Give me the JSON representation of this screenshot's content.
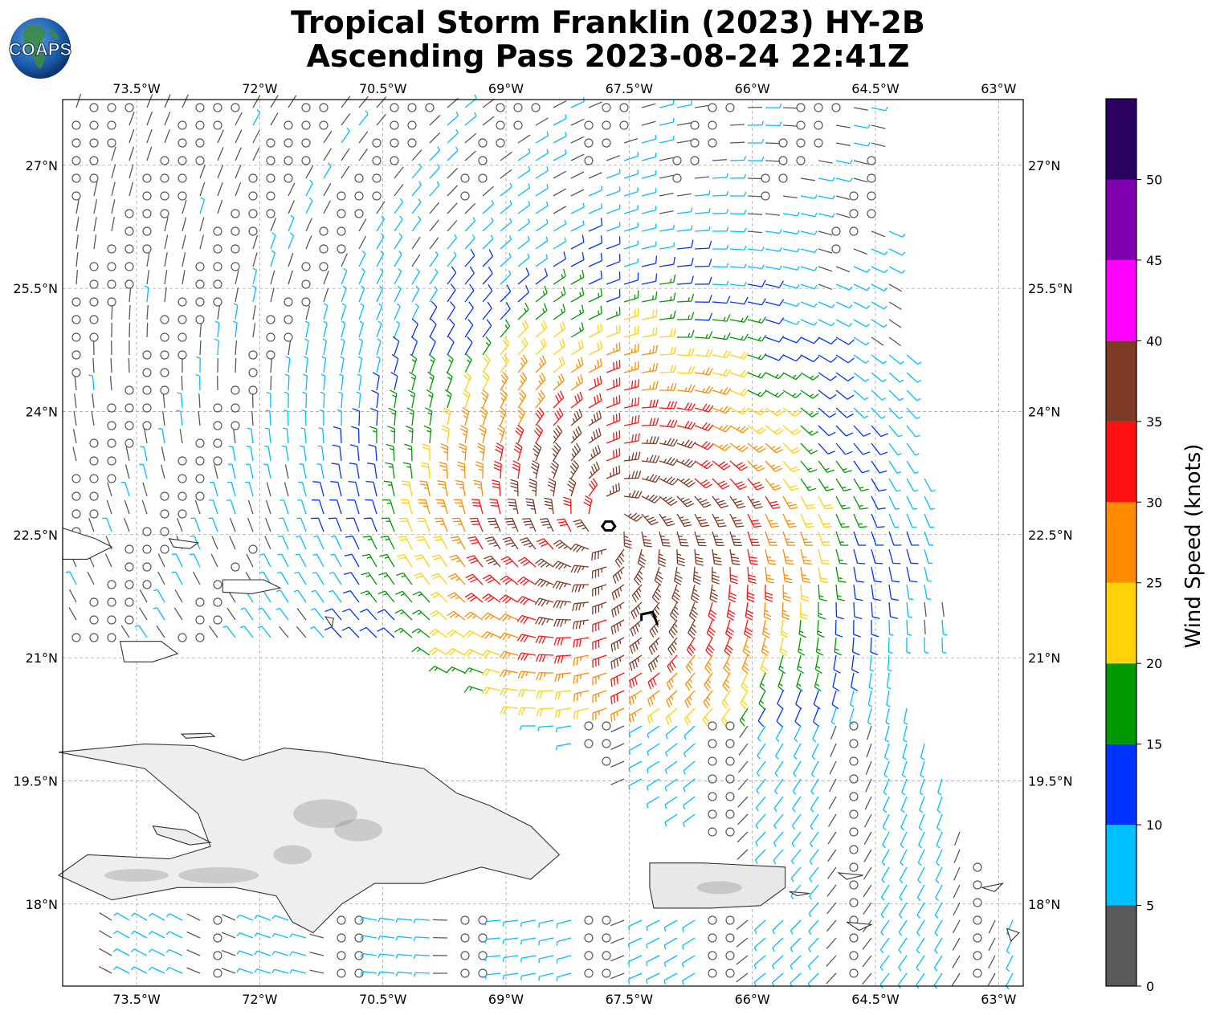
{
  "header": {
    "title_line1": "Tropical Storm Franklin (2023) HY-2B",
    "title_line2": "Ascending Pass 2023-08-24 22:41Z"
  },
  "logo": {
    "text": "COAPS"
  },
  "map": {
    "lon_range": [
      -74.4,
      -62.7
    ],
    "lat_range": [
      17.0,
      27.8
    ],
    "lon_ticks": [
      {
        "value": -73.5,
        "label": "73.5°W"
      },
      {
        "value": -72.0,
        "label": "72°W"
      },
      {
        "value": -70.5,
        "label": "70.5°W"
      },
      {
        "value": -69.0,
        "label": "69°W"
      },
      {
        "value": -67.5,
        "label": "67.5°W"
      },
      {
        "value": -66.0,
        "label": "66°W"
      },
      {
        "value": -64.5,
        "label": "64.5°W"
      },
      {
        "value": -63.0,
        "label": "63°W"
      }
    ],
    "lat_ticks": [
      {
        "value": 27.0,
        "label": "27°N"
      },
      {
        "value": 25.5,
        "label": "25.5°N"
      },
      {
        "value": 24.0,
        "label": "24°N"
      },
      {
        "value": 22.5,
        "label": "22.5°N"
      },
      {
        "value": 21.0,
        "label": "21°N"
      },
      {
        "value": 19.5,
        "label": "19.5°N"
      },
      {
        "value": 18.0,
        "label": "18°N"
      }
    ],
    "gridlines": true,
    "storm_center": {
      "lon": -67.75,
      "lat": 22.6
    },
    "land_color": "#ffffff",
    "coast_color": "#333333"
  },
  "colorbar": {
    "label": "Wind Speed (knots)",
    "range": [
      0,
      55
    ],
    "ticks": [
      {
        "value": 0,
        "label": "0"
      },
      {
        "value": 5,
        "label": "5"
      },
      {
        "value": 10,
        "label": "10"
      },
      {
        "value": 15,
        "label": "15"
      },
      {
        "value": 20,
        "label": "20"
      },
      {
        "value": 25,
        "label": "25"
      },
      {
        "value": 30,
        "label": "30"
      },
      {
        "value": 35,
        "label": "35"
      },
      {
        "value": 40,
        "label": "40"
      },
      {
        "value": 45,
        "label": "45"
      },
      {
        "value": 50,
        "label": "50"
      }
    ],
    "bins": [
      {
        "min": 0,
        "max": 5,
        "color": "#595959"
      },
      {
        "min": 5,
        "max": 10,
        "color": "#00bfff"
      },
      {
        "min": 10,
        "max": 15,
        "color": "#0033ff"
      },
      {
        "min": 15,
        "max": 20,
        "color": "#009900"
      },
      {
        "min": 20,
        "max": 25,
        "color": "#ffd20a"
      },
      {
        "min": 25,
        "max": 30,
        "color": "#ff8c00"
      },
      {
        "min": 30,
        "max": 35,
        "color": "#ff1010"
      },
      {
        "min": 35,
        "max": 40,
        "color": "#7d3a24"
      },
      {
        "min": 40,
        "max": 45,
        "color": "#ff00ff"
      },
      {
        "min": 45,
        "max": 50,
        "color": "#8000b0"
      },
      {
        "min": 50,
        "max": 55,
        "color": "#2a0060"
      }
    ]
  }
}
